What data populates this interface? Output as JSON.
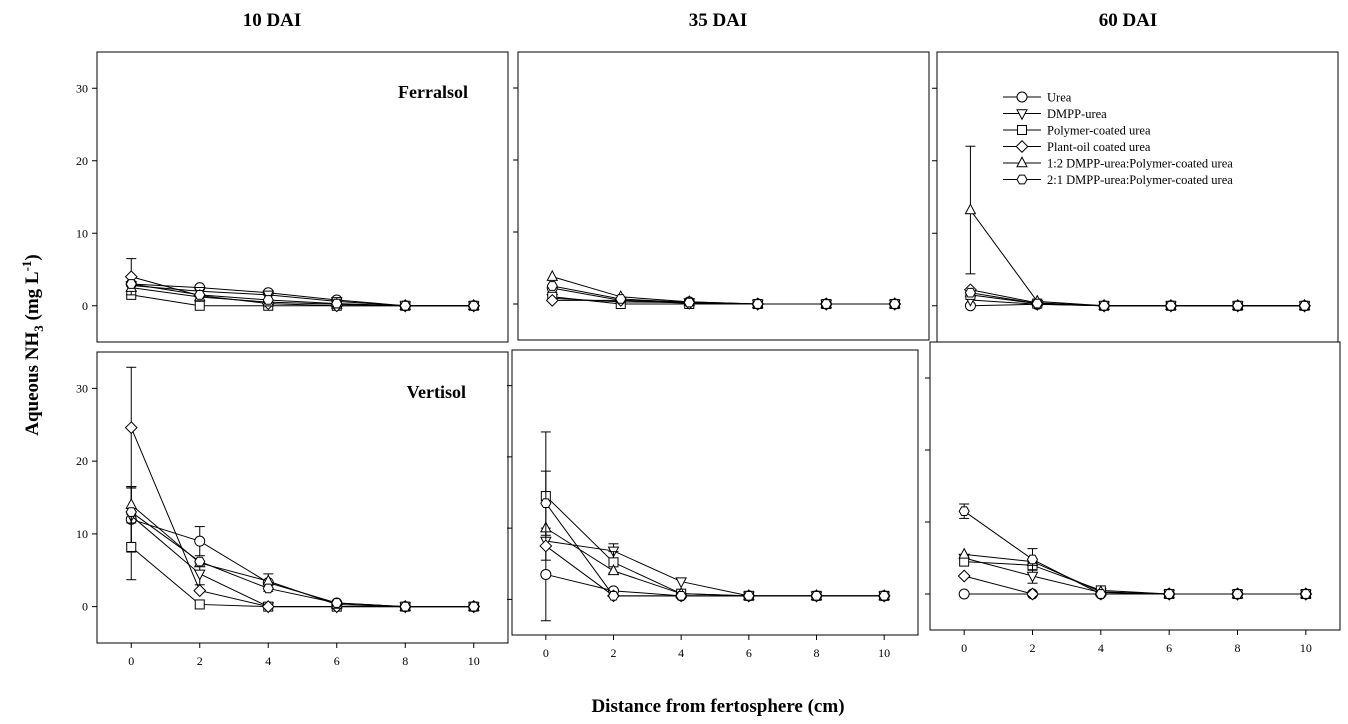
{
  "figure": {
    "ylabel_main": "Aqueous NH",
    "ylabel_sub": "3",
    "ylabel_unit": " (mg L",
    "ylabel_sup": "-1",
    "ylabel_end": ")",
    "xlabel": "Distance from fertosphere (cm)"
  },
  "columns": [
    "10 DAI",
    "35 DAI",
    "60 DAI"
  ],
  "rows": [
    "Ferralsol",
    "Vertisol"
  ],
  "legend": [
    {
      "label": "Urea",
      "marker": "circle"
    },
    {
      "label": "DMPP-urea",
      "marker": "triangle-down"
    },
    {
      "label": "Polymer-coated urea",
      "marker": "square"
    },
    {
      "label": "Plant-oil coated urea",
      "marker": "diamond"
    },
    {
      "label": "1:2 DMPP-urea:Polymer-coated urea",
      "marker": "triangle-up"
    },
    {
      "label": "2:1 DMPP-urea:Polymer-coated urea",
      "marker": "hexagon"
    }
  ],
  "chart_data": [
    {
      "type": "scatter",
      "panel": "10 DAI Ferralsol",
      "x": [
        0,
        2,
        4,
        6,
        8,
        10
      ],
      "ylim": [
        -5,
        35
      ],
      "xlim": [
        -1,
        11
      ],
      "yticks": [
        "0",
        "10",
        "20",
        "30"
      ],
      "xticks": [],
      "series": [
        {
          "name": "Urea",
          "values": [
            3.0,
            2.5,
            1.8,
            0.8,
            0,
            0
          ],
          "err": [
            0,
            0,
            0,
            0,
            0,
            0
          ]
        },
        {
          "name": "DMPP-urea",
          "values": [
            2.8,
            2.0,
            1.5,
            0.6,
            0,
            0
          ],
          "err": [
            0,
            0,
            0,
            0,
            0,
            0
          ]
        },
        {
          "name": "Polymer-coated urea",
          "values": [
            1.5,
            0,
            0,
            0,
            0,
            0
          ],
          "err": [
            0,
            0,
            0,
            0,
            0,
            0
          ]
        },
        {
          "name": "Plant-oil coated urea",
          "values": [
            4.0,
            1.4,
            0.3,
            0,
            0,
            0
          ],
          "err": [
            2.5,
            0,
            0,
            0,
            0,
            0
          ]
        },
        {
          "name": "1:2 DMPP-urea:Polymer-coated urea",
          "values": [
            2.5,
            1.2,
            0.5,
            0.2,
            0,
            0
          ],
          "err": [
            0,
            0,
            0,
            0,
            0,
            0
          ]
        },
        {
          "name": "2:1 DMPP-urea:Polymer-coated urea",
          "values": [
            3.0,
            1.5,
            0.8,
            0.3,
            0,
            0
          ],
          "err": [
            0,
            0,
            0,
            0,
            0,
            0
          ]
        }
      ]
    },
    {
      "type": "scatter",
      "panel": "35 DAI Ferralsol",
      "x": [
        0,
        2,
        4,
        6,
        8,
        10
      ],
      "ylim": [
        -5,
        35
      ],
      "xlim": [
        -1,
        11
      ],
      "yticks": [],
      "xticks": [],
      "series": [
        {
          "name": "Urea",
          "values": [
            2.2,
            0.5,
            0.3,
            0,
            0,
            0
          ],
          "err": [
            0,
            0,
            0,
            0,
            0,
            0
          ]
        },
        {
          "name": "DMPP-urea",
          "values": [
            0.8,
            0.3,
            0.2,
            0,
            0,
            0
          ],
          "err": [
            0,
            0,
            0,
            0,
            0,
            0
          ]
        },
        {
          "name": "Polymer-coated urea",
          "values": [
            1.0,
            0,
            0,
            0,
            0,
            0
          ],
          "err": [
            0,
            0,
            0,
            0,
            0,
            0
          ]
        },
        {
          "name": "Plant-oil coated urea",
          "values": [
            0.5,
            0.5,
            0.1,
            0,
            0,
            0
          ],
          "err": [
            0,
            0,
            0,
            0,
            0,
            0
          ]
        },
        {
          "name": "1:2 DMPP-urea:Polymer-coated urea",
          "values": [
            3.8,
            1.0,
            0.3,
            0,
            0,
            0
          ],
          "err": [
            0,
            0,
            0,
            0,
            0,
            0
          ]
        },
        {
          "name": "2:1 DMPP-urea:Polymer-coated urea",
          "values": [
            2.5,
            0.7,
            0.2,
            0,
            0,
            0
          ],
          "err": [
            0,
            0,
            0,
            0,
            0,
            0
          ]
        }
      ]
    },
    {
      "type": "scatter",
      "panel": "60 DAI Ferralsol",
      "x": [
        0,
        2,
        4,
        6,
        8,
        10
      ],
      "ylim": [
        -5,
        35
      ],
      "xlim": [
        -1,
        11
      ],
      "yticks": [],
      "xticks": [],
      "series": [
        {
          "name": "Urea",
          "values": [
            0,
            0.2,
            0,
            0,
            0,
            0
          ],
          "err": [
            0,
            0,
            0,
            0,
            0,
            0
          ]
        },
        {
          "name": "DMPP-urea",
          "values": [
            0.8,
            0.2,
            0,
            0,
            0,
            0
          ],
          "err": [
            0,
            0,
            0,
            0,
            0,
            0
          ]
        },
        {
          "name": "Polymer-coated urea",
          "values": [
            1.5,
            0.3,
            0,
            0,
            0,
            0
          ],
          "err": [
            0,
            0,
            0,
            0,
            0,
            0
          ]
        },
        {
          "name": "Plant-oil coated urea",
          "values": [
            2.2,
            0.4,
            0,
            0,
            0,
            0
          ],
          "err": [
            0,
            0,
            0,
            0,
            0,
            0
          ]
        },
        {
          "name": "1:2 DMPP-urea:Polymer-coated urea",
          "values": [
            13.2,
            0.6,
            0,
            0,
            0,
            0
          ],
          "err": [
            8.8,
            0,
            0,
            0,
            0,
            0
          ]
        },
        {
          "name": "2:1 DMPP-urea:Polymer-coated urea",
          "values": [
            1.8,
            0.3,
            0,
            0,
            0,
            0
          ],
          "err": [
            0,
            0,
            0,
            0,
            0,
            0
          ]
        }
      ]
    },
    {
      "type": "scatter",
      "panel": "10 DAI Vertisol",
      "x": [
        0,
        2,
        4,
        6,
        8,
        10
      ],
      "ylim": [
        -5,
        35
      ],
      "xlim": [
        -1,
        11
      ],
      "yticks": [
        "0",
        "10",
        "20",
        "30"
      ],
      "xticks": [
        "0",
        "2",
        "4",
        "6",
        "8",
        "10"
      ],
      "series": [
        {
          "name": "Urea",
          "values": [
            12.0,
            9.0,
            3.3,
            0.5,
            0,
            0
          ],
          "err": [
            4.5,
            2.0,
            1.2,
            0,
            0,
            0
          ]
        },
        {
          "name": "DMPP-urea",
          "values": [
            12.5,
            4.5,
            0,
            0,
            0,
            0
          ],
          "err": [
            4.0,
            1.5,
            0,
            0,
            0,
            0
          ]
        },
        {
          "name": "Polymer-coated urea",
          "values": [
            8.2,
            0.3,
            0,
            0,
            0,
            0
          ],
          "err": [
            4.5,
            0,
            0,
            0,
            0,
            0
          ]
        },
        {
          "name": "Plant-oil coated urea",
          "values": [
            24.6,
            2.2,
            0,
            0,
            0,
            0
          ],
          "err": [
            8.3,
            0,
            0,
            0,
            0,
            0
          ]
        },
        {
          "name": "1:2 DMPP-urea:Polymer-coated urea",
          "values": [
            14.0,
            6.0,
            3.5,
            0.3,
            0,
            0
          ],
          "err": [
            2.5,
            0,
            0,
            0,
            0,
            0
          ]
        },
        {
          "name": "2:1 DMPP-urea:Polymer-coated urea",
          "values": [
            13.0,
            6.2,
            2.5,
            0.5,
            0,
            0
          ],
          "err": [
            0,
            0,
            0,
            0,
            0,
            0
          ]
        }
      ]
    },
    {
      "type": "scatter",
      "panel": "35 DAI Vertisol",
      "x": [
        0,
        2,
        4,
        6,
        8,
        10
      ],
      "ylim": [
        -5,
        35
      ],
      "xlim": [
        -1,
        11
      ],
      "yticks": [],
      "xticks": [
        "0",
        "2",
        "4",
        "6",
        "8",
        "10"
      ],
      "series": [
        {
          "name": "Urea",
          "values": [
            3.5,
            1.2,
            0.5,
            0.5,
            0.5,
            0.5
          ],
          "err": [
            6.5,
            0,
            0,
            0,
            0,
            0
          ]
        },
        {
          "name": "DMPP-urea",
          "values": [
            8.2,
            6.8,
            2.5,
            0.5,
            0.5,
            0.5
          ],
          "err": [
            0,
            1.0,
            0,
            0,
            0,
            0
          ]
        },
        {
          "name": "Polymer-coated urea",
          "values": [
            14.5,
            5.2,
            0.8,
            0.5,
            0.5,
            0.5
          ],
          "err": [
            9.0,
            1.5,
            0,
            0,
            0,
            0
          ]
        },
        {
          "name": "Plant-oil coated urea",
          "values": [
            7.5,
            0.5,
            0.5,
            0.5,
            0.5,
            0.5
          ],
          "err": [
            0,
            0,
            0,
            0,
            0,
            0
          ]
        },
        {
          "name": "1:2 DMPP-urea:Polymer-coated urea",
          "values": [
            10.0,
            4.0,
            0.8,
            0.5,
            0.5,
            0.5
          ],
          "err": [
            0,
            0,
            0,
            0,
            0,
            0
          ]
        },
        {
          "name": "2:1 DMPP-urea:Polymer-coated urea",
          "values": [
            13.5,
            0.5,
            0.5,
            0.5,
            0.5,
            0.5
          ],
          "err": [
            4.5,
            0,
            0,
            0,
            0,
            0
          ]
        }
      ]
    },
    {
      "type": "scatter",
      "panel": "60 DAI Vertisol",
      "x": [
        0,
        2,
        4,
        6,
        8,
        10
      ],
      "ylim": [
        -5,
        35
      ],
      "xlim": [
        -1,
        11
      ],
      "yticks": [],
      "xticks": [
        "0",
        "2",
        "4",
        "6",
        "8",
        "10"
      ],
      "series": [
        {
          "name": "Urea",
          "values": [
            0,
            0,
            0,
            0,
            0,
            0
          ],
          "err": [
            0,
            0,
            0,
            0,
            0,
            0
          ]
        },
        {
          "name": "DMPP-urea",
          "values": [
            5.0,
            2.5,
            0.2,
            0,
            0,
            0
          ],
          "err": [
            0,
            1.0,
            0,
            0,
            0,
            0
          ]
        },
        {
          "name": "Polymer-coated urea",
          "values": [
            4.5,
            4.0,
            0.5,
            0,
            0,
            0
          ],
          "err": [
            0,
            0,
            0,
            0,
            0,
            0
          ]
        },
        {
          "name": "Plant-oil coated urea",
          "values": [
            2.5,
            0,
            0,
            0,
            0,
            0
          ],
          "err": [
            0,
            0,
            0,
            0,
            0,
            0
          ]
        },
        {
          "name": "1:2 DMPP-urea:Polymer-coated urea",
          "values": [
            5.5,
            4.5,
            0.3,
            0,
            0,
            0
          ],
          "err": [
            0,
            0,
            0,
            0,
            0,
            0
          ]
        },
        {
          "name": "2:1 DMPP-urea:Polymer-coated urea",
          "values": [
            11.5,
            4.8,
            0,
            0,
            0,
            0
          ],
          "err": [
            1.0,
            1.5,
            0,
            0,
            0,
            0
          ]
        }
      ]
    }
  ]
}
